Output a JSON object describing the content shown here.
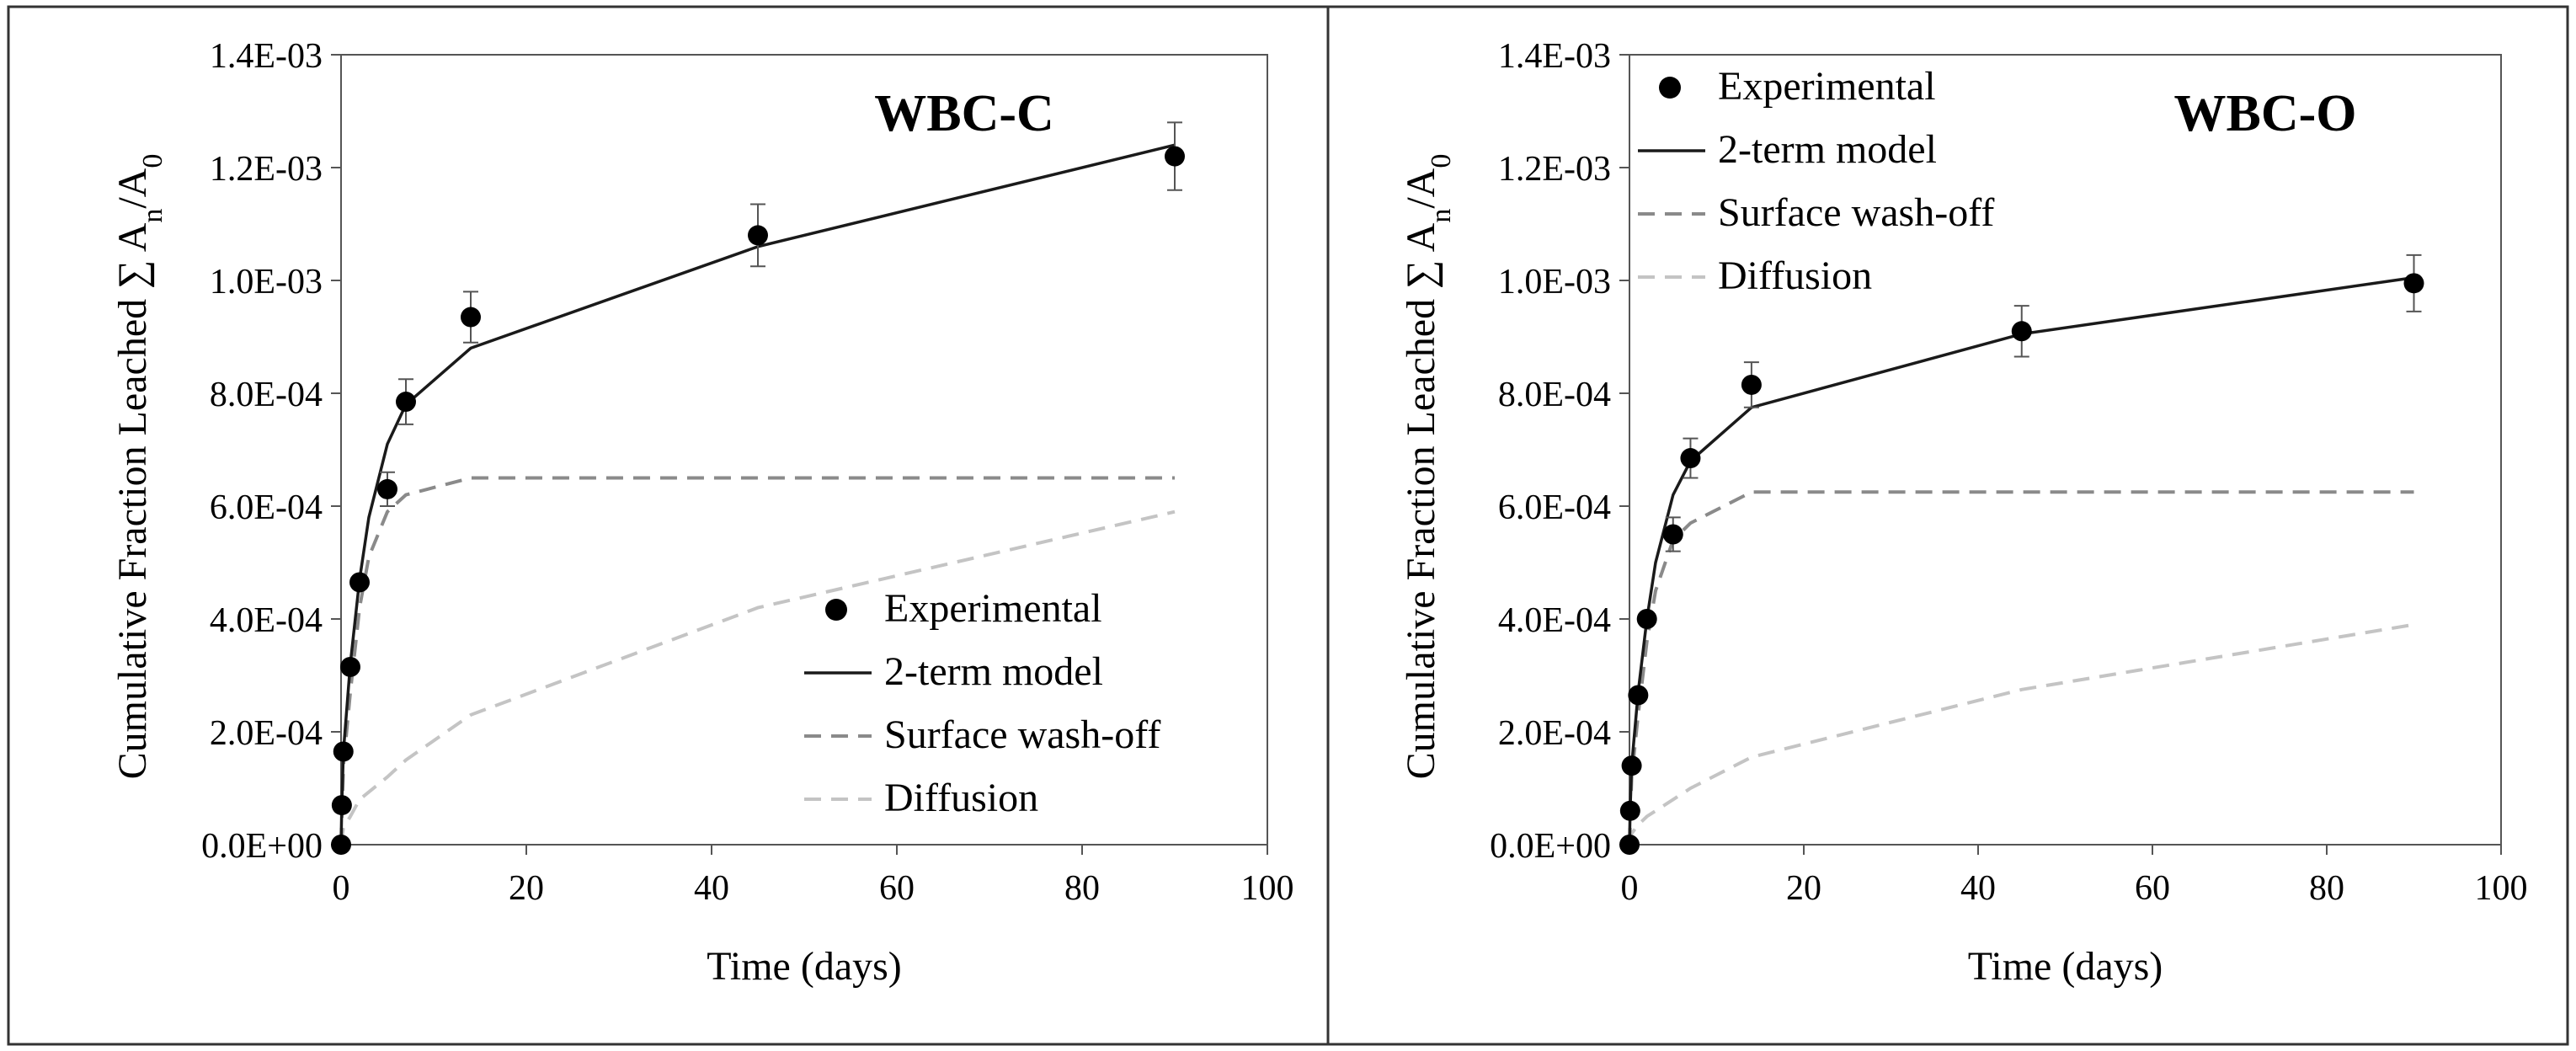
{
  "chart_data": [
    {
      "type": "scatter",
      "panel_label": "WBC-C",
      "xlabel": "Time (days)",
      "ylabel_text": "Cumulative Fraction Leached ∑ A",
      "ylabel_sub_n": "n",
      "ylabel_slash": "/A",
      "ylabel_sub_0": "0",
      "xlim": [
        0,
        100
      ],
      "ylim": [
        0,
        0.0014
      ],
      "x_ticks": [
        0,
        20,
        40,
        60,
        80,
        100
      ],
      "x_tick_labels": [
        "0",
        "20",
        "40",
        "60",
        "80",
        "100"
      ],
      "y_ticks": [
        0,
        0.0002,
        0.0004,
        0.0006,
        0.0008,
        0.001,
        0.0012,
        0.0014
      ],
      "y_tick_labels": [
        "0.0E+00",
        "2.0E-04",
        "4.0E-04",
        "6.0E-04",
        "8.0E-04",
        "1.0E-03",
        "1.2E-03",
        "1.4E-03"
      ],
      "grid": false,
      "legend_position": "lower-right",
      "series": [
        {
          "name": "Experimental",
          "kind": "markers",
          "color": "#000000",
          "x": [
            0,
            0.08,
            0.25,
            1,
            2,
            5,
            7,
            14,
            45,
            90
          ],
          "y": [
            0,
            7e-05,
            0.000165,
            0.000315,
            0.000465,
            0.00063,
            0.000785,
            0.000935,
            0.00108,
            0.00122
          ],
          "error": [
            0,
            0,
            0,
            0,
            0,
            3e-05,
            4e-05,
            4.5e-05,
            5.5e-05,
            6e-05
          ]
        },
        {
          "name": "2-term model",
          "kind": "line",
          "style": "solid",
          "color": "#1a1a1a",
          "x": [
            0,
            0.08,
            0.25,
            1,
            2,
            3,
            5,
            7,
            14,
            45,
            90
          ],
          "y": [
            0,
            7e-05,
            0.000165,
            0.00032,
            0.00047,
            0.00058,
            0.00071,
            0.00078,
            0.00088,
            0.00106,
            0.00124
          ]
        },
        {
          "name": "Surface wash-off",
          "kind": "line",
          "style": "dashed",
          "color": "#8a8a8a",
          "x": [
            0,
            0.25,
            1,
            2,
            3,
            5,
            7,
            14,
            45,
            90
          ],
          "y": [
            0,
            0.00014,
            0.00027,
            0.00042,
            0.00051,
            0.00059,
            0.00062,
            0.00065,
            0.00065,
            0.00065
          ]
        },
        {
          "name": "Diffusion",
          "kind": "line",
          "style": "dashed",
          "color": "#c4c4c4",
          "x": [
            0,
            0.25,
            1,
            2,
            5,
            7,
            14,
            45,
            90
          ],
          "y": [
            0,
            3e-05,
            5e-05,
            8e-05,
            0.00012,
            0.00015,
            0.00023,
            0.00042,
            0.00059
          ]
        }
      ]
    },
    {
      "type": "scatter",
      "panel_label": "WBC-O",
      "xlabel": "Time (days)",
      "ylabel_text": "Cumulative Fraction Leached ∑ A",
      "ylabel_sub_n": "n",
      "ylabel_slash": "/A",
      "ylabel_sub_0": "0",
      "xlim": [
        0,
        100
      ],
      "ylim": [
        0,
        0.0014
      ],
      "x_ticks": [
        0,
        20,
        40,
        60,
        80,
        100
      ],
      "x_tick_labels": [
        "0",
        "20",
        "40",
        "60",
        "80",
        "100"
      ],
      "y_ticks": [
        0,
        0.0002,
        0.0004,
        0.0006,
        0.0008,
        0.001,
        0.0012,
        0.0014
      ],
      "y_tick_labels": [
        "0.0E+00",
        "2.0E-04",
        "4.0E-04",
        "6.0E-04",
        "8.0E-04",
        "1.0E-03",
        "1.2E-03",
        "1.4E-03"
      ],
      "grid": false,
      "legend_position": "top-left",
      "series": [
        {
          "name": "Experimental",
          "kind": "markers",
          "color": "#000000",
          "x": [
            0,
            0.08,
            0.25,
            1,
            2,
            5,
            7,
            14,
            45,
            90
          ],
          "y": [
            0,
            6e-05,
            0.00014,
            0.000265,
            0.0004,
            0.00055,
            0.000685,
            0.000815,
            0.00091,
            0.000995
          ],
          "error": [
            0,
            0,
            0,
            0,
            0,
            3e-05,
            3.5e-05,
            4e-05,
            4.5e-05,
            5e-05
          ]
        },
        {
          "name": "2-term model",
          "kind": "line",
          "style": "solid",
          "color": "#1a1a1a",
          "x": [
            0,
            0.08,
            0.25,
            1,
            2,
            3,
            5,
            7,
            14,
            45,
            90
          ],
          "y": [
            0,
            6e-05,
            0.00014,
            0.00027,
            0.0004,
            0.0005,
            0.00062,
            0.00068,
            0.000775,
            0.000905,
            0.001005
          ]
        },
        {
          "name": "Surface wash-off",
          "kind": "line",
          "style": "dashed",
          "color": "#8a8a8a",
          "x": [
            0,
            0.25,
            1,
            2,
            3,
            5,
            7,
            14,
            45,
            90
          ],
          "y": [
            0,
            0.00012,
            0.00023,
            0.00036,
            0.00045,
            0.00054,
            0.00057,
            0.000625,
            0.000625,
            0.000625
          ]
        },
        {
          "name": "Diffusion",
          "kind": "line",
          "style": "dashed",
          "color": "#c4c4c4",
          "x": [
            0,
            0.25,
            1,
            2,
            5,
            7,
            14,
            45,
            90
          ],
          "y": [
            0,
            2e-05,
            3.5e-05,
            5e-05,
            8e-05,
            0.0001,
            0.000155,
            0.000275,
            0.00039
          ]
        }
      ]
    }
  ]
}
